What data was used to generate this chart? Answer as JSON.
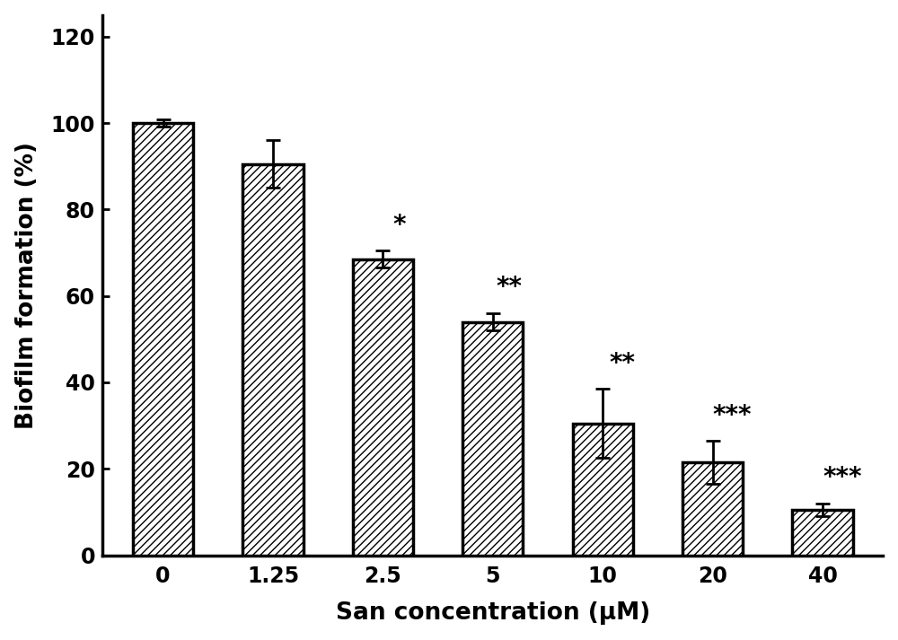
{
  "categories": [
    "0",
    "1.25",
    "2.5",
    "5",
    "10",
    "20",
    "40"
  ],
  "values": [
    100,
    90.5,
    68.5,
    54.0,
    30.5,
    21.5,
    10.5
  ],
  "errors": [
    0.8,
    5.5,
    2.0,
    2.0,
    8.0,
    5.0,
    1.5
  ],
  "significance": [
    "",
    "",
    "*",
    "**",
    "**",
    "***",
    "***"
  ],
  "ylabel": "Biofilm formation (%)",
  "xlabel": "San concentration (μM)",
  "ylim": [
    0,
    125
  ],
  "yticks": [
    0,
    20,
    40,
    60,
    80,
    100,
    120
  ],
  "bar_color": "#ffffff",
  "hatch": "////",
  "edgecolor": "#000000",
  "background_color": "#ffffff",
  "label_fontsize": 19,
  "tick_fontsize": 17,
  "sig_fontsize": 20,
  "bar_width": 0.55,
  "bar_linewidth": 2.5,
  "spine_linewidth": 2.5,
  "errorbar_linewidth": 2.0,
  "errorbar_capsize": 6,
  "errorbar_capthick": 2.0
}
